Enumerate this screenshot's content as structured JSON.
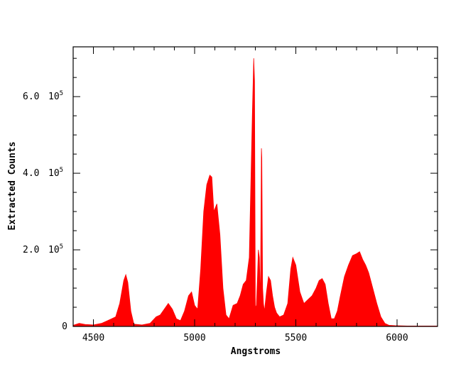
{
  "chart_data": {
    "type": "area",
    "title": "",
    "xlabel": "Angstroms",
    "ylabel": "Extracted Counts",
    "xlim": [
      4400,
      6200
    ],
    "ylim": [
      0,
      730000
    ],
    "x_ticks": [
      {
        "value": 4500,
        "label": "4500"
      },
      {
        "value": 5000,
        "label": "5000"
      },
      {
        "value": 5500,
        "label": "5500"
      },
      {
        "value": 6000,
        "label": "6000"
      }
    ],
    "y_ticks": [
      {
        "value": 0,
        "mantissa": "0",
        "exponent": ""
      },
      {
        "value": 200000,
        "mantissa": "2.0",
        "exponent": "5"
      },
      {
        "value": 400000,
        "mantissa": "4.0",
        "exponent": "5"
      },
      {
        "value": 600000,
        "mantissa": "6.0",
        "exponent": "5"
      }
    ],
    "y_tick_base": "10",
    "grid": false,
    "legend": "none",
    "color": "#ff0000",
    "series": [
      {
        "x": [
          4400,
          4430,
          4460,
          4500,
          4540,
          4570,
          4590,
          4610,
          4630,
          4650,
          4660,
          4670,
          4685,
          4700,
          4740,
          4780,
          4810,
          4830,
          4850,
          4870,
          4890,
          4910,
          4930,
          4950,
          4970,
          4985,
          5000,
          5015,
          5030,
          5045,
          5060,
          5075,
          5085,
          5095,
          5110,
          5125,
          5140,
          5155,
          5170,
          5190,
          5210,
          5225,
          5240,
          5255,
          5270,
          5285,
          5292,
          5296,
          5300,
          5305,
          5310,
          5315,
          5320,
          5325,
          5330,
          5332,
          5336,
          5340,
          5345,
          5355,
          5365,
          5375,
          5385,
          5395,
          5405,
          5420,
          5440,
          5460,
          5475,
          5485,
          5500,
          5520,
          5540,
          5560,
          5580,
          5600,
          5615,
          5630,
          5645,
          5660,
          5675,
          5690,
          5705,
          5720,
          5740,
          5760,
          5780,
          5800,
          5815,
          5830,
          5845,
          5860,
          5880,
          5900,
          5920,
          5940,
          5960,
          5990,
          6050,
          6100,
          6200
        ],
        "y": [
          3000,
          8000,
          5000,
          4000,
          8000,
          15000,
          20000,
          25000,
          60000,
          120000,
          135000,
          115000,
          40000,
          6000,
          4000,
          8000,
          25000,
          30000,
          45000,
          60000,
          45000,
          20000,
          15000,
          40000,
          80000,
          90000,
          55000,
          45000,
          150000,
          300000,
          370000,
          395000,
          390000,
          300000,
          320000,
          240000,
          100000,
          30000,
          20000,
          55000,
          60000,
          80000,
          110000,
          120000,
          180000,
          550000,
          700000,
          640000,
          50000,
          55000,
          120000,
          200000,
          180000,
          60000,
          465000,
          440000,
          100000,
          60000,
          40000,
          90000,
          130000,
          120000,
          80000,
          50000,
          35000,
          25000,
          30000,
          60000,
          150000,
          180000,
          160000,
          90000,
          60000,
          70000,
          80000,
          100000,
          120000,
          125000,
          110000,
          60000,
          20000,
          20000,
          40000,
          80000,
          130000,
          160000,
          185000,
          190000,
          195000,
          175000,
          160000,
          140000,
          100000,
          60000,
          25000,
          8000,
          3000,
          2000,
          1000,
          1000,
          1000
        ]
      }
    ]
  }
}
